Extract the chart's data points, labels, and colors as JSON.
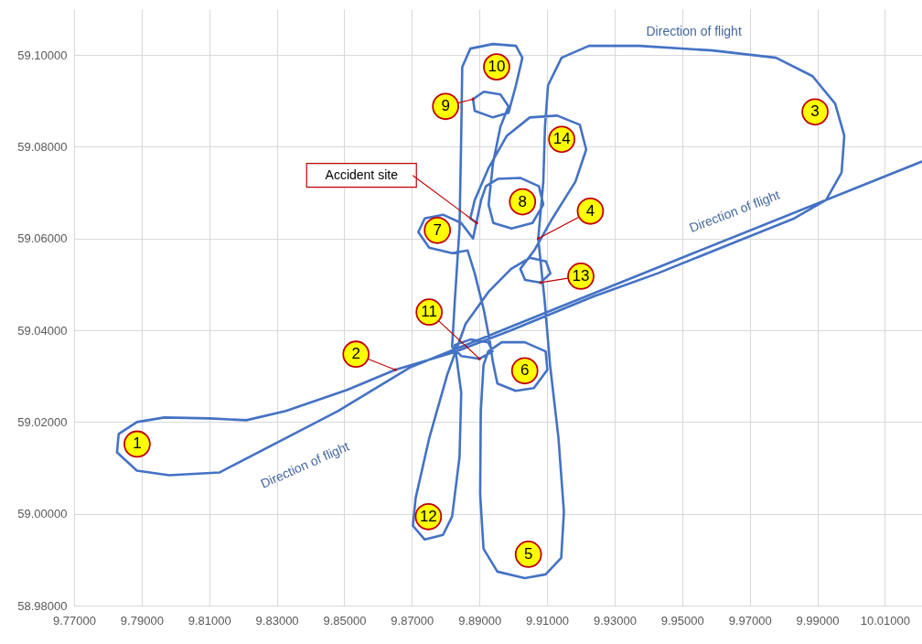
{
  "chart_data": {
    "type": "line",
    "xlim": [
      9.77,
      10.021
    ],
    "ylim": [
      58.98,
      59.11
    ],
    "xticks": [
      {
        "value": 9.77,
        "label": "9.77000"
      },
      {
        "value": 9.79,
        "label": "9.79000"
      },
      {
        "value": 9.81,
        "label": "9.81000"
      },
      {
        "value": 9.83,
        "label": "9.83000"
      },
      {
        "value": 9.85,
        "label": "9.85000"
      },
      {
        "value": 9.87,
        "label": "9.87000"
      },
      {
        "value": 9.89,
        "label": "9.89000"
      },
      {
        "value": 9.91,
        "label": "9.91000"
      },
      {
        "value": 9.93,
        "label": "9.93000"
      },
      {
        "value": 9.95,
        "label": "9.95000"
      },
      {
        "value": 9.97,
        "label": "9.97000"
      },
      {
        "value": 9.99,
        "label": "9.99000"
      },
      {
        "value": 10.01,
        "label": "10.01000"
      }
    ],
    "yticks": [
      {
        "value": 58.98,
        "label": "58.98000"
      },
      {
        "value": 59.0,
        "label": "59.00000"
      },
      {
        "value": 59.02,
        "label": "59.02000"
      },
      {
        "value": 59.04,
        "label": "59.04000"
      },
      {
        "value": 59.06,
        "label": "59.06000"
      },
      {
        "value": 59.08,
        "label": "59.08000"
      },
      {
        "value": 59.1,
        "label": "59.10000"
      }
    ],
    "grid": true,
    "series": [
      {
        "color": "#4472c4",
        "x": [
          10.021,
          9.9533,
          9.8994,
          9.8697,
          9.8481,
          9.813,
          9.7981,
          9.7886,
          9.7827,
          9.7832,
          9.7886,
          9.7967,
          9.8102,
          9.821,
          9.8327,
          9.8508,
          9.8651,
          9.8832,
          9.8994,
          9.9238,
          9.9427,
          9.9643,
          9.9832,
          9.9926,
          9.9972,
          9.998,
          9.9953,
          9.9886,
          9.9778,
          9.9589,
          9.9373,
          9.9224,
          9.9143,
          9.9103,
          9.9094,
          9.9089,
          9.9074,
          9.9093,
          9.9109,
          9.9134,
          9.915,
          9.9142,
          9.9096,
          9.9034,
          9.8953,
          9.8912,
          9.8902,
          9.8904,
          9.8912,
          9.8926,
          9.8966,
          9.9034,
          9.9096,
          9.9101,
          9.9061,
          9.9007,
          9.8953,
          9.8939,
          9.8931,
          9.8913,
          9.8886,
          9.8865,
          9.8819,
          9.8751,
          9.8719,
          9.8738,
          9.8792,
          9.8846,
          9.8881,
          9.8905,
          9.8919,
          9.8954,
          9.9022,
          9.9076,
          9.9089,
          9.9057,
          9.8995,
          9.8941,
          9.8927,
          9.894,
          9.8962,
          9.8986,
          9.8962,
          9.8913,
          9.8881,
          9.8886,
          9.894,
          9.8986,
          9.9008,
          9.9027,
          9.9008,
          9.894,
          9.8873,
          9.8849,
          9.8846,
          9.8841,
          9.8827,
          9.8819,
          9.8846,
          9.89,
          9.8939,
          9.8926,
          9.8873,
          9.8827,
          9.8846,
          9.8841,
          9.8819,
          9.8792,
          9.8738,
          9.8703,
          9.8711,
          9.8751,
          9.8805,
          9.8859,
          9.8927,
          9.8994,
          9.9049,
          9.9097,
          9.911,
          9.9081,
          9.9035,
          9.9021,
          9.9062,
          9.9116,
          9.9184,
          9.9216,
          9.9197,
          9.913,
          9.9049,
          9.8981,
          9.8927,
          9.8886,
          9.8873,
          9.8892
        ],
        "values": [
          59.0768,
          59.0568,
          59.0408,
          59.032,
          59.0224,
          59.009,
          59.0084,
          59.0094,
          59.0134,
          59.0174,
          59.02,
          59.021,
          59.0208,
          59.0204,
          59.0224,
          59.027,
          59.0314,
          59.0354,
          59.04,
          59.0474,
          59.0524,
          59.0588,
          59.0644,
          59.0684,
          59.0744,
          59.0824,
          59.0894,
          59.0954,
          59.0994,
          59.101,
          59.102,
          59.102,
          59.0994,
          59.0934,
          59.0844,
          59.0724,
          59.06,
          59.0464,
          59.0324,
          59.0164,
          59.0004,
          58.9904,
          58.9868,
          58.986,
          58.9874,
          58.9924,
          59.0044,
          59.0224,
          59.0324,
          59.0354,
          59.0374,
          59.0374,
          59.0354,
          59.0314,
          59.0274,
          59.0268,
          59.0284,
          59.0334,
          59.0374,
          59.0444,
          59.0524,
          59.0574,
          59.0568,
          59.058,
          59.0614,
          59.0644,
          59.0652,
          59.0634,
          59.06,
          59.0684,
          59.0714,
          59.073,
          59.0732,
          59.0714,
          59.0674,
          59.0634,
          59.0622,
          59.0634,
          59.0674,
          59.0764,
          59.0844,
          59.0888,
          59.0914,
          59.092,
          59.0904,
          59.0878,
          59.0864,
          59.0874,
          59.0934,
          59.0994,
          59.102,
          59.1024,
          59.1014,
          59.0974,
          59.0824,
          59.0624,
          59.0464,
          59.0364,
          59.0344,
          59.0338,
          59.0354,
          59.0374,
          59.038,
          59.0368,
          59.0264,
          59.0124,
          58.9994,
          58.9954,
          58.9944,
          58.9974,
          59.0034,
          59.0164,
          59.0304,
          59.0414,
          59.0484,
          59.0534,
          59.0558,
          59.055,
          59.0524,
          59.0504,
          59.051,
          59.0534,
          59.0574,
          59.0644,
          59.0724,
          59.0794,
          59.0848,
          59.0868,
          59.0864,
          59.0824,
          59.0754,
          59.0684,
          59.0644,
          59.0634
        ]
      }
    ],
    "annotations": [
      {
        "text": "1",
        "x": 9.7827,
        "y": 59.0134
      },
      {
        "text": "2",
        "x": 9.8651,
        "y": 59.0314
      },
      {
        "text": "3",
        "x": 9.9953,
        "y": 59.0894
      },
      {
        "text": "4",
        "x": 9.9074,
        "y": 59.06
      },
      {
        "text": "5",
        "x": 9.9034,
        "y": 58.986
      },
      {
        "text": "6",
        "x": 9.9007,
        "y": 59.0268
      },
      {
        "text": "7",
        "x": 9.8751,
        "y": 59.058
      },
      {
        "text": "8",
        "x": 9.9022,
        "y": 59.0732
      },
      {
        "text": "9",
        "x": 9.8881,
        "y": 59.0904
      },
      {
        "text": "10",
        "x": 9.894,
        "y": 59.1024
      },
      {
        "text": "11",
        "x": 9.89,
        "y": 59.0338
      },
      {
        "text": "12",
        "x": 9.8738,
        "y": 58.9944
      },
      {
        "text": "13",
        "x": 9.9081,
        "y": 59.0504
      },
      {
        "text": "14",
        "x": 9.913,
        "y": 59.0868
      },
      {
        "text": "Accident site",
        "x": 9.8892,
        "y": 59.0634
      },
      {
        "text": "Direction of flight",
        "x": 9.9589,
        "y": 59.101
      },
      {
        "text": "Direction of flight",
        "x": 9.9643,
        "y": 59.0588
      },
      {
        "text": "Direction of flight",
        "x": 9.8481,
        "y": 59.0224
      }
    ]
  }
}
